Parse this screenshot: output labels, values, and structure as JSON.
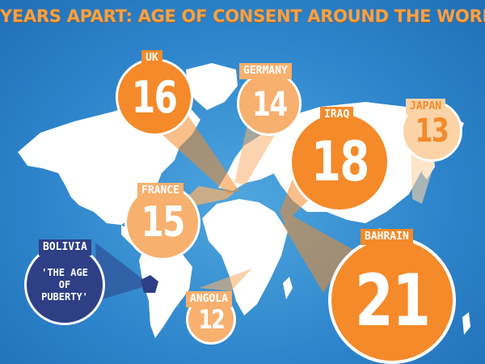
{
  "title": "YEARS APART: AGE OF CONSENT AROUND THE WORLD",
  "colors": {
    "ocean": "#2f86cc",
    "land": "#ffffff",
    "orange": "#f48a2a",
    "light_orange": "#f7b06e",
    "pale_orange": "#fbd3a6",
    "bolivia": "#2e3f86"
  },
  "countries": [
    {
      "id": "uk",
      "label": "UK",
      "value": "16"
    },
    {
      "id": "germany",
      "label": "GERMANY",
      "value": "14"
    },
    {
      "id": "iraq",
      "label": "IRAQ",
      "value": "18"
    },
    {
      "id": "japan",
      "label": "JAPAN",
      "value": "13"
    },
    {
      "id": "france",
      "label": "FRANCE",
      "value": "15"
    },
    {
      "id": "bahrain",
      "label": "BAHRAIN",
      "value": "21"
    },
    {
      "id": "angola",
      "label": "ANGOLA",
      "value": "12"
    },
    {
      "id": "bolivia",
      "label": "BOLIVIA",
      "value": "'THE AGE OF PUBERTY'"
    }
  ]
}
